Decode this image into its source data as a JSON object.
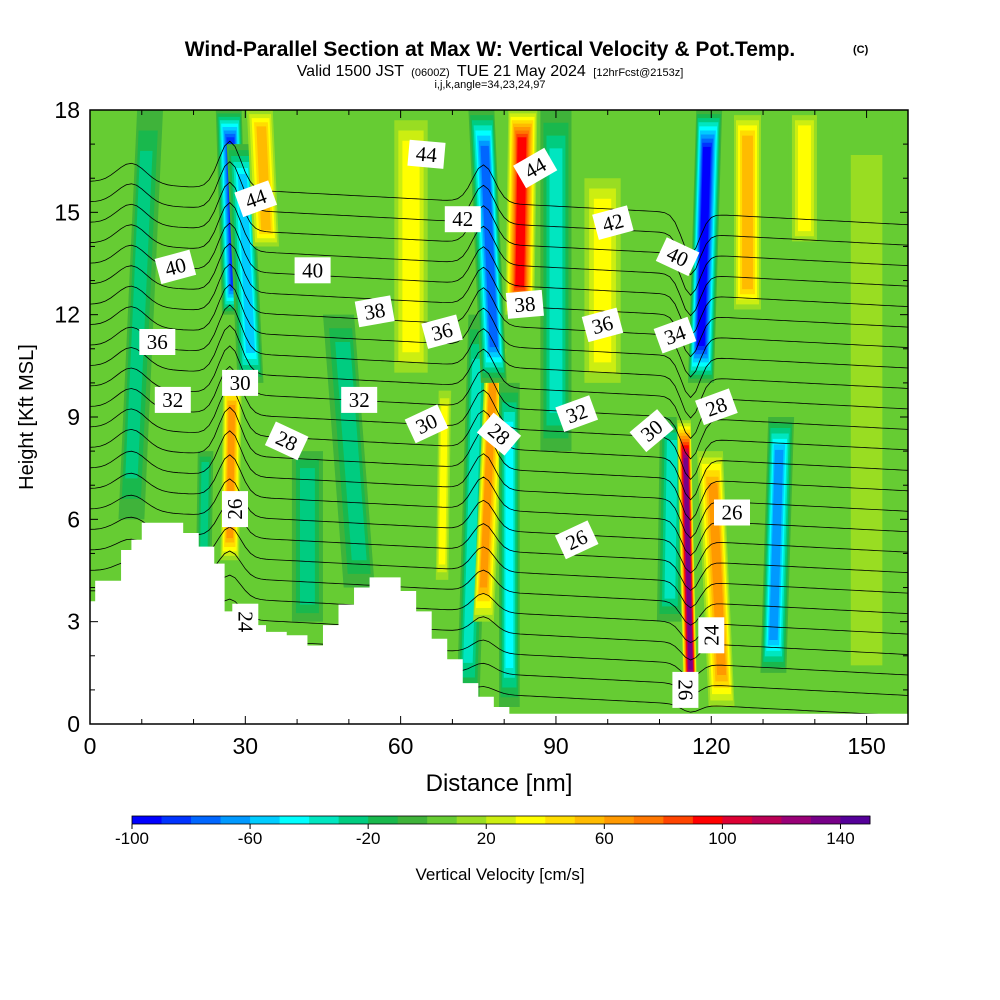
{
  "chart_data": {
    "type": "heatmap",
    "title": "Wind-Parallel Section at Max W: Vertical Velocity & Pot.Temp.",
    "title_mark": "(C)",
    "subtitle_main": "Valid 1500 JST",
    "subtitle_utc": "(0600Z)",
    "subtitle_date": "TUE 21 May 2024",
    "subtitle_fcst": "[12hrFcst@2153z]",
    "subtitle2": "i,j,k,angle=34,23,24,97",
    "xlabel": "Distance [nm]",
    "ylabel": "Height [Kft MSL]",
    "xlim": [
      0,
      158
    ],
    "ylim": [
      0,
      18
    ],
    "x_ticks": [
      "0",
      "30",
      "60",
      "90",
      "120",
      "150"
    ],
    "y_ticks": [
      "0",
      "3",
      "6",
      "9",
      "12",
      "15",
      "18"
    ],
    "colorbar": {
      "label": "Vertical Velocity [cm/s]",
      "range": [
        -100,
        150
      ],
      "tick_labels": [
        "-100",
        "-60",
        "-20",
        "20",
        "60",
        "100",
        "140"
      ],
      "colors": [
        "#0000ff",
        "#0033ff",
        "#0066ff",
        "#0099ff",
        "#00ccff",
        "#00ffff",
        "#00e6c0",
        "#00cc80",
        "#19b84d",
        "#3fb33a",
        "#66cc33",
        "#99dd22",
        "#ccee11",
        "#ffff00",
        "#ffdd00",
        "#ffbb00",
        "#ff9900",
        "#ff7700",
        "#ff4400",
        "#ff0000",
        "#dd0033",
        "#bb0055",
        "#990077",
        "#770088",
        "#550099"
      ]
    },
    "background_level": 0,
    "velocity_bands": [
      {
        "x": 8,
        "ybottom": 6,
        "ytop": 18,
        "halfwidth": 2.5,
        "value": -25,
        "tilt": 0.3
      },
      {
        "x": 28,
        "ybottom": 12,
        "ytop": 18,
        "halfwidth": 2.5,
        "value": -90,
        "tilt": -0.2
      },
      {
        "x": 31,
        "ybottom": 10,
        "ytop": 17,
        "halfwidth": 2.5,
        "value": -55,
        "tilt": -0.3
      },
      {
        "x": 34,
        "ybottom": 14,
        "ytop": 18,
        "halfwidth": 2.5,
        "value": 50,
        "tilt": -0.3
      },
      {
        "x": 27,
        "ybottom": 4.8,
        "ytop": 10,
        "halfwidth": 1.8,
        "value": 60,
        "tilt": 0.1
      },
      {
        "x": 22,
        "ybottom": 4.8,
        "ytop": 8,
        "halfwidth": 1.5,
        "value": -30,
        "tilt": 0.1
      },
      {
        "x": 42,
        "ybottom": 3,
        "ytop": 8,
        "halfwidth": 3.0,
        "value": -25,
        "tilt": 0.0
      },
      {
        "x": 52,
        "ybottom": 4,
        "ytop": 12,
        "halfwidth": 3.0,
        "value": -25,
        "tilt": -0.5
      },
      {
        "x": 62,
        "ybottom": 10,
        "ytop": 18,
        "halfwidth": 4.0,
        "value": 35,
        "tilt": 0.0
      },
      {
        "x": 68,
        "ybottom": 4,
        "ytop": 10,
        "halfwidth": 1.5,
        "value": 35,
        "tilt": 0.1
      },
      {
        "x": 73,
        "ybottom": 0.5,
        "ytop": 12,
        "halfwidth": 2.2,
        "value": -35,
        "tilt": 0.2
      },
      {
        "x": 76,
        "ybottom": 3,
        "ytop": 11,
        "halfwidth": 2.0,
        "value": 60,
        "tilt": 0.3
      },
      {
        "x": 78,
        "ybottom": 10,
        "ytop": 18,
        "halfwidth": 2.5,
        "value": -75,
        "tilt": -0.3
      },
      {
        "x": 81,
        "ybottom": 0.5,
        "ytop": 10,
        "halfwidth": 2.0,
        "value": -45,
        "tilt": 0.0
      },
      {
        "x": 83,
        "ybottom": 12,
        "ytop": 18,
        "halfwidth": 2.8,
        "value": 90,
        "tilt": 0.1
      },
      {
        "x": 90,
        "ybottom": 8,
        "ytop": 18,
        "halfwidth": 3.0,
        "value": -35,
        "tilt": 0.0
      },
      {
        "x": 99,
        "ybottom": 10,
        "ytop": 16,
        "halfwidth": 3.5,
        "value": 30,
        "tilt": 0.0
      },
      {
        "x": 112,
        "ybottom": 3,
        "ytop": 9,
        "halfwidth": 2.5,
        "value": -35,
        "tilt": 0.1
      },
      {
        "x": 116,
        "ybottom": 0.4,
        "ytop": 9,
        "halfwidth": 1.4,
        "value": 135,
        "tilt": -0.15
      },
      {
        "x": 118,
        "ybottom": 10,
        "ytop": 18,
        "halfwidth": 2.5,
        "value": -100,
        "tilt": 0.2
      },
      {
        "x": 122,
        "ybottom": 0.5,
        "ytop": 8,
        "halfwidth": 2.5,
        "value": 60,
        "tilt": -0.3
      },
      {
        "x": 127,
        "ybottom": 12,
        "ytop": 18,
        "halfwidth": 3.0,
        "value": 55,
        "tilt": 0.0
      },
      {
        "x": 132,
        "ybottom": 1.5,
        "ytop": 9,
        "halfwidth": 2.5,
        "value": -65,
        "tilt": 0.2
      },
      {
        "x": 138,
        "ybottom": 14,
        "ytop": 18,
        "halfwidth": 3.0,
        "value": 35,
        "tilt": 0.0
      },
      {
        "x": 150,
        "ybottom": 0.4,
        "ytop": 18,
        "halfwidth": 5.0,
        "value": 15,
        "tilt": 0.0
      }
    ],
    "terrain": {
      "x": [
        0,
        1,
        1,
        3,
        3,
        6,
        6,
        8,
        8,
        10,
        10,
        13,
        13,
        18,
        18,
        21,
        21,
        24,
        24,
        26,
        26,
        29,
        29,
        31,
        31,
        34,
        34,
        38,
        38,
        42,
        42,
        45,
        45,
        48,
        48,
        51,
        51,
        54,
        54,
        60,
        60,
        63,
        63,
        66,
        66,
        69,
        69,
        72,
        72,
        75,
        75,
        78,
        78,
        81,
        81,
        158
      ],
      "height": [
        3.6,
        3.6,
        4.2,
        4.2,
        4.2,
        4.2,
        5.1,
        5.1,
        5.4,
        5.4,
        5.9,
        5.9,
        5.9,
        5.9,
        5.6,
        5.6,
        5.2,
        5.2,
        4.7,
        4.7,
        3.3,
        3.3,
        3.5,
        3.5,
        2.9,
        2.9,
        2.7,
        2.7,
        2.6,
        2.6,
        2.3,
        2.3,
        2.9,
        2.9,
        3.5,
        3.5,
        4.0,
        4.0,
        4.3,
        4.3,
        3.9,
        3.9,
        3.3,
        3.3,
        2.5,
        2.5,
        1.9,
        1.9,
        1.2,
        1.2,
        0.8,
        0.8,
        0.5,
        0.5,
        0.3,
        0.3
      ]
    },
    "theta_contours": {
      "levels_from": 22,
      "levels_to": 46,
      "step": 1,
      "base_height_at_22": 1.5,
      "spacing_kft": 0.6
    },
    "contour_labels": [
      {
        "text": "44",
        "x": 32,
        "y": 15.4,
        "angle": -20
      },
      {
        "text": "44",
        "x": 65,
        "y": 16.7,
        "angle": 5
      },
      {
        "text": "44",
        "x": 86,
        "y": 16.3,
        "angle": -30
      },
      {
        "text": "42",
        "x": 72,
        "y": 14.8,
        "angle": 0
      },
      {
        "text": "42",
        "x": 101,
        "y": 14.7,
        "angle": -15
      },
      {
        "text": "40",
        "x": 16.5,
        "y": 13.4,
        "angle": -15
      },
      {
        "text": "40",
        "x": 43,
        "y": 13.3,
        "angle": 0
      },
      {
        "text": "40",
        "x": 113.5,
        "y": 13.7,
        "angle": 25
      },
      {
        "text": "38",
        "x": 55,
        "y": 12.1,
        "angle": -10
      },
      {
        "text": "38",
        "x": 84,
        "y": 12.3,
        "angle": -5
      },
      {
        "text": "36",
        "x": 13,
        "y": 11.2,
        "angle": 0
      },
      {
        "text": "36",
        "x": 68,
        "y": 11.5,
        "angle": -15
      },
      {
        "text": "36",
        "x": 99,
        "y": 11.7,
        "angle": -15
      },
      {
        "text": "34",
        "x": 113,
        "y": 11.4,
        "angle": -20
      },
      {
        "text": "32",
        "x": 16,
        "y": 9.5,
        "angle": 0
      },
      {
        "text": "32",
        "x": 52,
        "y": 9.5,
        "angle": 0
      },
      {
        "text": "32",
        "x": 94,
        "y": 9.1,
        "angle": -20
      },
      {
        "text": "30",
        "x": 29,
        "y": 10.0,
        "angle": 0
      },
      {
        "text": "30",
        "x": 65,
        "y": 8.8,
        "angle": -25
      },
      {
        "text": "30",
        "x": 108.5,
        "y": 8.6,
        "angle": -40
      },
      {
        "text": "28",
        "x": 38,
        "y": 8.3,
        "angle": 25
      },
      {
        "text": "28",
        "x": 79,
        "y": 8.5,
        "angle": 40
      },
      {
        "text": "28",
        "x": 121,
        "y": 9.3,
        "angle": -20
      },
      {
        "text": "26",
        "x": 28,
        "y": 6.3,
        "angle": -90
      },
      {
        "text": "26",
        "x": 94,
        "y": 5.4,
        "angle": -25
      },
      {
        "text": "26",
        "x": 124,
        "y": 6.2,
        "angle": 0
      },
      {
        "text": "26",
        "x": 115,
        "y": 1.0,
        "angle": 90
      },
      {
        "text": "24",
        "x": 30,
        "y": 3.0,
        "angle": 90
      },
      {
        "text": "24",
        "x": 120,
        "y": 2.6,
        "angle": -90
      }
    ]
  }
}
